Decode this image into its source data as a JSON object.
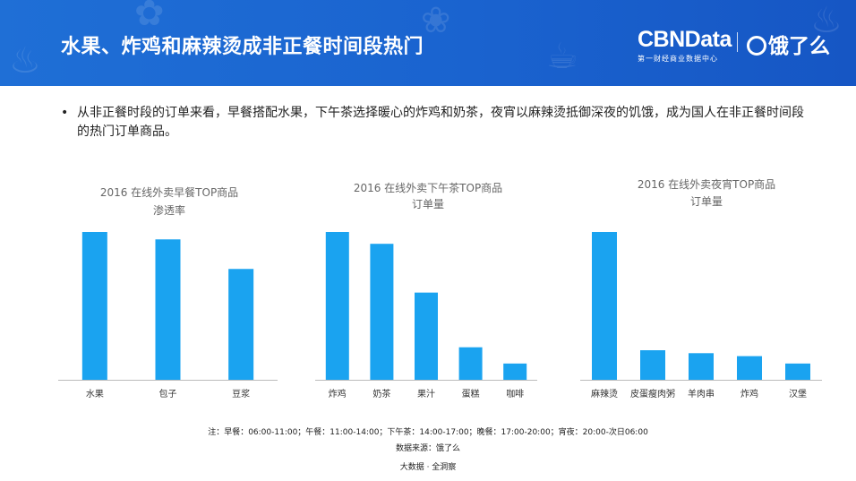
{
  "header": {
    "title": "水果、炸鸡和麻辣烫成非正餐时间段热门",
    "brand_name": "CBNData",
    "brand_sub": "第一财经商业数据中心",
    "partner_name": "饿了么"
  },
  "intro": {
    "bullet": "•",
    "text": "从非正餐时段的订单来看，早餐搭配水果，下午茶选择暖心的炸鸡和奶茶，夜宵以麻辣烫抵御深夜的饥饿，成为国人在非正餐时间段的热门订单商品。"
  },
  "colors": {
    "bar": "#1aa3f0",
    "header": "#1a63cf",
    "axis": "#bbbbbb"
  },
  "chart_data": [
    {
      "type": "bar",
      "title": "2016 在线外卖早餐TOP商品",
      "subtitle": "渗透率",
      "categories": [
        "水果",
        "包子",
        "豆浆"
      ],
      "values": [
        100,
        95,
        75
      ],
      "ylim": [
        0,
        120
      ],
      "grid": false
    },
    {
      "type": "bar",
      "title": "2016 在线外卖下午茶TOP商品",
      "subtitle": "订单量",
      "categories": [
        "炸鸡",
        "奶茶",
        "果汁",
        "蛋糕",
        "咖啡"
      ],
      "values": [
        100,
        92,
        59,
        22,
        11
      ],
      "ylim": [
        0,
        120
      ],
      "grid": false
    },
    {
      "type": "bar",
      "title": "2016 在线外卖夜宵TOP商品",
      "subtitle": "订单量",
      "categories": [
        "麻辣烫",
        "皮蛋瘦肉粥",
        "羊肉串",
        "炸鸡",
        "汉堡"
      ],
      "values": [
        100,
        20,
        18,
        16,
        11
      ],
      "ylim": [
        0,
        120
      ],
      "grid": false
    }
  ],
  "footer": {
    "note": "注：早餐：06:00-11:00；午餐：11:00-14:00；下午茶：14:00-17:00；晚餐：17:00-20:00；宵夜：20:00-次日06:00",
    "source": "数据来源：饿了么",
    "tagline": "大数据 · 全洞察"
  }
}
